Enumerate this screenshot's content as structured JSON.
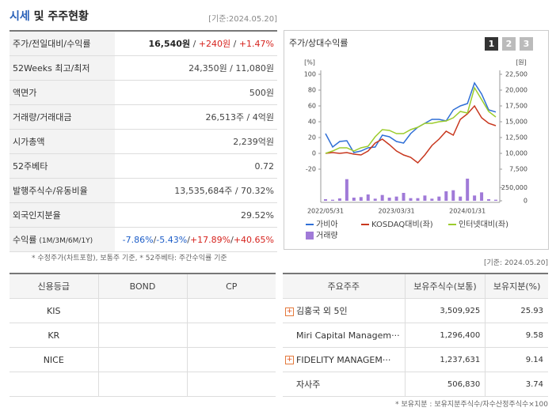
{
  "header": {
    "title": [
      "시세",
      "및 주주현황"
    ],
    "date": "[기준:2024.05.20]"
  },
  "quote_table": {
    "rows": [
      {
        "label": "주가/전일대비/수익률",
        "value": [
          {
            "text": "16,540원",
            "color": "#222",
            "bold": true
          },
          {
            "text": " / "
          },
          {
            "text": "+240원",
            "color": "#d6231e"
          },
          {
            "text": " / "
          },
          {
            "text": "+1.47%",
            "color": "#d6231e"
          }
        ]
      },
      {
        "label": "52Weeks 최고/최저",
        "value": "24,350원 / 11,080원"
      },
      {
        "label": "액면가",
        "value": "500원"
      },
      {
        "label": "거래량/거래대금",
        "value": "26,513주 / 4억원"
      },
      {
        "label": "시가총액",
        "value": "2,239억원"
      },
      {
        "label": "52주베타",
        "value": "0.72"
      },
      {
        "label": "발행주식수/유동비율",
        "value": "13,535,684주 / 70.32%"
      },
      {
        "label": "외국인지분율",
        "value": "29.52%"
      },
      {
        "label": "수익률",
        "label_note": "(1M/3M/6M/1Y)",
        "value": [
          {
            "text": "-7.86%",
            "color": "#1e5ec8"
          },
          {
            "text": "/"
          },
          {
            "text": "-5.43%",
            "color": "#1e5ec8"
          },
          {
            "text": "/"
          },
          {
            "text": "+17.89%",
            "color": "#d6231e"
          },
          {
            "text": "/"
          },
          {
            "text": "+40.65%",
            "color": "#d6231e"
          }
        ]
      }
    ]
  },
  "chart_panel": {
    "title": "주가/상대수익률",
    "tabs": [
      "1",
      "2",
      "3"
    ]
  },
  "chart_data": {
    "type": "line",
    "x": [
      "2022/05/31",
      null,
      null,
      null,
      null,
      null,
      null,
      null,
      null,
      null,
      "2023/03/31",
      null,
      null,
      null,
      null,
      null,
      null,
      null,
      null,
      null,
      "2024/01/31",
      null,
      null,
      null,
      null
    ],
    "ylabel": "[%]",
    "y2label": "[원]",
    "ylim": [
      -20,
      100
    ],
    "yticks": [
      -20,
      0,
      20,
      40,
      60,
      80,
      100
    ],
    "y2lim": [
      7500,
      22500
    ],
    "y2ticks": [
      {
        "value": 7500,
        "label": "7,500"
      },
      {
        "value": 10000,
        "label": "10,000"
      },
      {
        "value": 12500,
        "label": "12,500"
      },
      {
        "value": 15000,
        "label": "15,000"
      },
      {
        "value": 17500,
        "label": "17,500"
      },
      {
        "value": 20000,
        "label": "20,000"
      },
      {
        "value": 22500,
        "label": "22,500"
      }
    ],
    "volume_lim": [
      0,
      450000
    ],
    "volume_ticks": [
      0,
      {
        "value": 250000,
        "label": "250,000"
      }
    ],
    "series": [
      {
        "name": "가비아",
        "color": "#2f6fd6",
        "axis": "y2",
        "values": [
          13125,
          11000,
          11875,
          12000,
          10125,
          10375,
          10875,
          11000,
          12875,
          12625,
          11875,
          11625,
          13125,
          14125,
          14750,
          15375,
          15375,
          15125,
          16875,
          17500,
          17875,
          21125,
          19375,
          16875,
          16540
        ]
      },
      {
        "name": "KOSDAQ대비(좌)",
        "color": "#c8371e",
        "values": [
          0,
          1,
          0,
          1,
          -1,
          -2,
          3,
          13,
          18,
          11,
          3,
          -2,
          -5,
          -12,
          -2,
          10,
          18,
          28,
          23,
          43,
          50,
          60,
          45,
          38,
          35
        ]
      },
      {
        "name": "인터넷대비(좌)",
        "color": "#9ccc2c",
        "values": [
          0,
          3,
          7,
          7,
          3,
          7,
          9,
          21,
          30,
          29,
          25,
          25,
          30,
          33,
          38,
          38,
          40,
          41,
          45,
          53,
          51,
          83,
          68,
          53,
          46
        ]
      },
      {
        "name": "거래량",
        "color": "#a07ad8",
        "type": "bar",
        "axis": "volume",
        "values": [
          30000,
          20000,
          45000,
          410000,
          60000,
          70000,
          120000,
          40000,
          110000,
          60000,
          80000,
          150000,
          50000,
          50000,
          100000,
          40000,
          80000,
          180000,
          200000,
          80000,
          420000,
          100000,
          160000,
          30000,
          20000
        ]
      }
    ]
  },
  "notes": {
    "left": "* 수정주가(차트포함), 보통주 기준, * 52주베타: 주간수익률 기준",
    "right": "[기준: 2024.05.20]",
    "bottom": "* 보유지분 : 보유지분주식수/자수산정주식수×100"
  },
  "rating_table": {
    "headers": [
      "신용등급",
      "BOND",
      "CP"
    ],
    "rows": [
      [
        "KIS",
        null,
        null
      ],
      [
        "KR",
        null,
        null
      ],
      [
        "NICE",
        null,
        null
      ],
      [
        null,
        null,
        null
      ]
    ]
  },
  "shareholder_table": {
    "headers": [
      "주요주주",
      "보유주식수(보통)",
      "보유지분(%)"
    ],
    "rows": [
      {
        "cells": [
          "김홍국 외 5인",
          "3,509,925",
          "25.93"
        ],
        "expandable": true
      },
      {
        "cells": [
          "Miri Capital Managem···",
          "1,296,400",
          "9.58"
        ],
        "expandable": false
      },
      {
        "cells": [
          "FIDELITY MANAGEM···",
          "1,237,631",
          "9.14"
        ],
        "expandable": true
      },
      {
        "cells": [
          "자사주",
          "506,830",
          "3.74"
        ],
        "expandable": false
      }
    ]
  }
}
